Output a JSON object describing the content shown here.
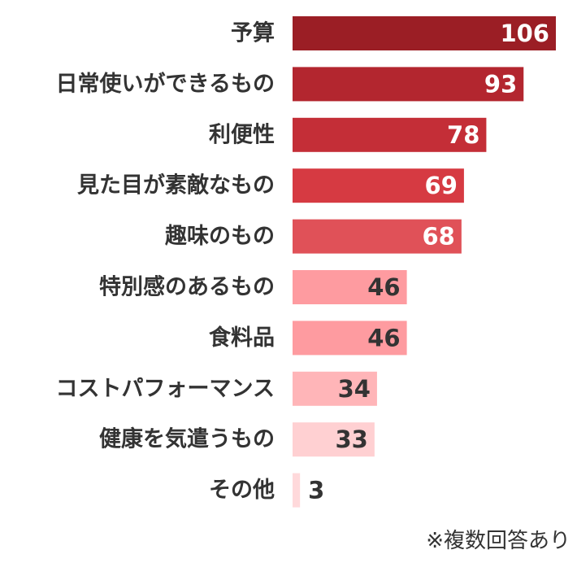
{
  "chart_data": {
    "type": "bar",
    "orientation": "horizontal",
    "categories": [
      "予算",
      "日常使いができるもの",
      "利便性",
      "見た目が素敵なもの",
      "趣味のもの",
      "特別感のあるもの",
      "食料品",
      "コストパフォーマンス",
      "健康を気遣うもの",
      "その他"
    ],
    "values": [
      106,
      93,
      78,
      69,
      68,
      46,
      46,
      34,
      33,
      3
    ],
    "value_labels": [
      "106",
      "93",
      "78",
      "69",
      "68",
      "46",
      "46",
      "34",
      "33",
      "3"
    ],
    "colors": [
      "#9b1e25",
      "#b3262f",
      "#c42e37",
      "#d63a42",
      "#e05158",
      "#fe9ba0",
      "#fe9ba0",
      "#ffb5b8",
      "#ffd0d2",
      "#ffd9db"
    ],
    "label_colors": [
      "#ffffff",
      "#ffffff",
      "#ffffff",
      "#ffffff",
      "#ffffff",
      "#333333",
      "#333333",
      "#333333",
      "#333333",
      "#333333"
    ],
    "xlim": [
      0,
      106
    ],
    "grid": false,
    "legend": "none"
  },
  "note": "※複数回答あり"
}
